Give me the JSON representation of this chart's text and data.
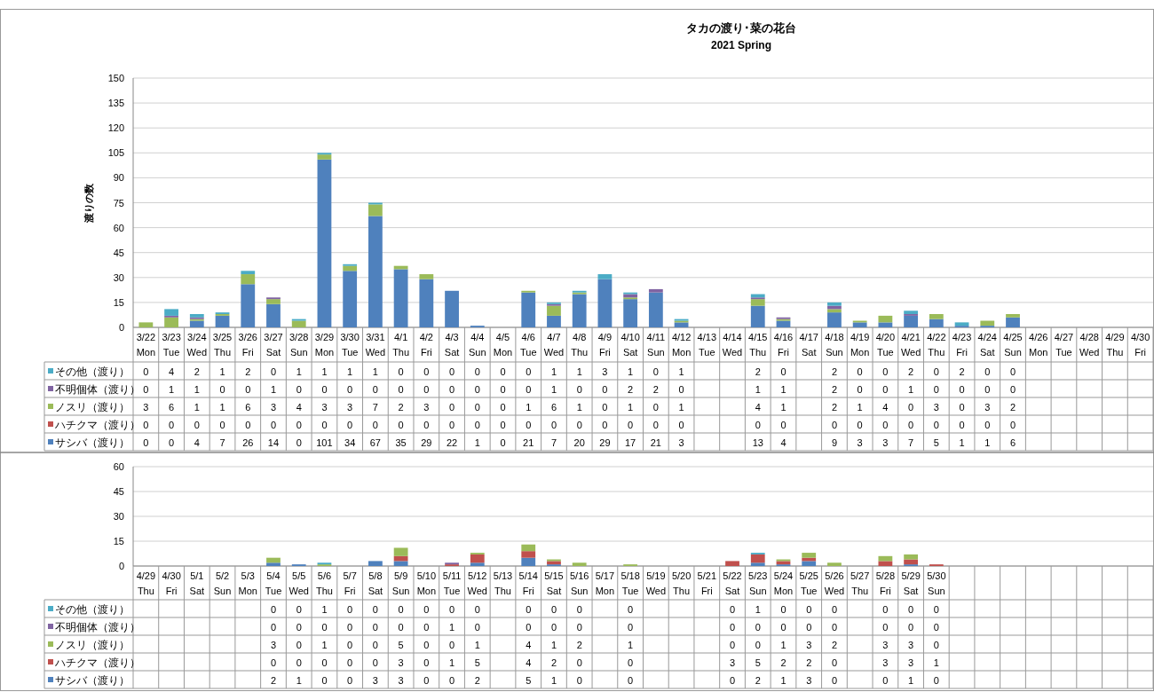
{
  "chart_data": [
    {
      "type": "bar",
      "title": "タカの渡り･菜の花台",
      "subtitle": "2021 Spring",
      "ylabel": "渡りの数",
      "stacked": true,
      "grid": "y",
      "legend": "bottom",
      "data_labels": true,
      "ylim": [
        0,
        150
      ],
      "yticks": [
        0,
        15,
        30,
        45,
        60,
        75,
        90,
        105,
        120,
        135,
        150
      ],
      "categories": [
        "3/22\nMon",
        "3/23\nTue",
        "3/24\nWed",
        "3/25\nThu",
        "3/26\nFri",
        "3/27\nSat",
        "3/28\nSun",
        "3/29\nMon",
        "3/30\nTue",
        "3/31\nWed",
        "4/1\nThu",
        "4/2\nFri",
        "4/3\nSat",
        "4/4\nSun",
        "4/5\nMon",
        "4/6\nTue",
        "4/7\nWed",
        "4/8\nThu",
        "4/9\nFri",
        "4/10\nSat",
        "4/11\nSun",
        "4/12\nMon",
        "4/13\nTue",
        "4/14\nWed",
        "4/15\nThu",
        "4/16\nFri",
        "4/17\nSat",
        "4/18\nSun",
        "4/19\nMon",
        "4/20\nTue",
        "4/21\nWed",
        "4/22\nThu",
        "4/23\nFri",
        "4/24\nSat",
        "4/25\nSun",
        "4/26\nMon",
        "4/27\nTue",
        "4/28\nWed",
        "4/29\nThu",
        "4/30\nFri"
      ],
      "series": [
        {
          "name": "サシバ（渡り）",
          "color": "#4f81bd",
          "values": [
            0,
            0,
            4,
            7,
            26,
            14,
            0,
            101,
            34,
            67,
            35,
            29,
            22,
            1,
            0,
            21,
            7,
            20,
            29,
            17,
            21,
            3,
            null,
            null,
            13,
            4,
            null,
            9,
            3,
            3,
            7,
            5,
            1,
            1,
            6,
            null,
            null,
            null,
            null,
            null
          ]
        },
        {
          "name": "ハチクマ（渡り）",
          "color": "#c0504d",
          "values": [
            0,
            0,
            0,
            0,
            0,
            0,
            0,
            0,
            0,
            0,
            0,
            0,
            0,
            0,
            0,
            0,
            0,
            0,
            0,
            0,
            0,
            0,
            null,
            null,
            0,
            0,
            null,
            0,
            0,
            0,
            0,
            0,
            0,
            0,
            0,
            null,
            null,
            null,
            null,
            null
          ]
        },
        {
          "name": "ノスリ（渡り）",
          "color": "#9bbb59",
          "values": [
            3,
            6,
            1,
            1,
            6,
            3,
            4,
            3,
            3,
            7,
            2,
            3,
            0,
            0,
            0,
            1,
            6,
            1,
            0,
            1,
            0,
            1,
            null,
            null,
            4,
            1,
            null,
            2,
            1,
            4,
            0,
            3,
            0,
            3,
            2,
            null,
            null,
            null,
            null,
            null
          ]
        },
        {
          "name": "不明個体（渡り）",
          "color": "#8064a2",
          "values": [
            0,
            1,
            1,
            0,
            0,
            1,
            0,
            0,
            0,
            0,
            0,
            0,
            0,
            0,
            0,
            0,
            1,
            0,
            0,
            2,
            2,
            0,
            null,
            null,
            1,
            1,
            null,
            2,
            0,
            0,
            1,
            0,
            0,
            0,
            0,
            null,
            null,
            null,
            null,
            null
          ]
        },
        {
          "name": "その他（渡り）",
          "color": "#4bacc6",
          "values": [
            0,
            4,
            2,
            1,
            2,
            0,
            1,
            1,
            1,
            1,
            0,
            0,
            0,
            0,
            0,
            0,
            1,
            1,
            3,
            1,
            0,
            1,
            null,
            null,
            2,
            0,
            null,
            2,
            0,
            0,
            2,
            0,
            2,
            0,
            0,
            null,
            null,
            null,
            null,
            null
          ]
        }
      ]
    },
    {
      "type": "bar",
      "stacked": true,
      "grid": "y",
      "legend": "bottom",
      "data_labels": true,
      "ylim": [
        0,
        60
      ],
      "yticks": [
        0,
        15,
        30,
        45,
        60
      ],
      "categories": [
        "4/29\nThu",
        "4/30\nFri",
        "5/1\nSat",
        "5/2\nSun",
        "5/3\nMon",
        "5/4\nTue",
        "5/5\nWed",
        "5/6\nThu",
        "5/7\nFri",
        "5/8\nSat",
        "5/9\nSun",
        "5/10\nMon",
        "5/11\nTue",
        "5/12\nWed",
        "5/13\nThu",
        "5/14\nFri",
        "5/15\nSat",
        "5/16\nSun",
        "5/17\nMon",
        "5/18\nTue",
        "5/19\nWed",
        "5/20\nThu",
        "5/21\nFri",
        "5/22\nSat",
        "5/23\nSun",
        "5/24\nMon",
        "5/25\nTue",
        "5/26\nWed",
        "5/27\nThu",
        "5/28\nFri",
        "5/29\nSat",
        "5/30\nSun",
        null,
        null,
        null,
        null,
        null,
        null,
        null,
        null
      ],
      "series": [
        {
          "name": "サシバ（渡り）",
          "color": "#4f81bd",
          "values": [
            null,
            null,
            null,
            null,
            null,
            2,
            1,
            0,
            0,
            3,
            3,
            0,
            0,
            2,
            null,
            5,
            1,
            0,
            null,
            0,
            null,
            null,
            null,
            0,
            2,
            1,
            3,
            0,
            null,
            0,
            1,
            0,
            null,
            null,
            null,
            null,
            null,
            null,
            null,
            null
          ]
        },
        {
          "name": "ハチクマ（渡り）",
          "color": "#c0504d",
          "values": [
            null,
            null,
            null,
            null,
            null,
            0,
            0,
            0,
            0,
            0,
            3,
            0,
            1,
            5,
            null,
            4,
            2,
            0,
            null,
            0,
            null,
            null,
            null,
            3,
            5,
            2,
            2,
            0,
            null,
            3,
            3,
            1,
            null,
            null,
            null,
            null,
            null,
            null,
            null,
            null
          ]
        },
        {
          "name": "ノスリ（渡り）",
          "color": "#9bbb59",
          "values": [
            null,
            null,
            null,
            null,
            null,
            3,
            0,
            1,
            0,
            0,
            5,
            0,
            0,
            1,
            null,
            4,
            1,
            2,
            null,
            1,
            null,
            null,
            null,
            0,
            0,
            1,
            3,
            2,
            null,
            3,
            3,
            0,
            null,
            null,
            null,
            null,
            null,
            null,
            null,
            null
          ]
        },
        {
          "name": "不明個体（渡り）",
          "color": "#8064a2",
          "values": [
            null,
            null,
            null,
            null,
            null,
            0,
            0,
            0,
            0,
            0,
            0,
            0,
            1,
            0,
            null,
            0,
            0,
            0,
            null,
            0,
            null,
            null,
            null,
            0,
            0,
            0,
            0,
            0,
            null,
            0,
            0,
            0,
            null,
            null,
            null,
            null,
            null,
            null,
            null,
            null
          ]
        },
        {
          "name": "その他（渡り）",
          "color": "#4bacc6",
          "values": [
            null,
            null,
            null,
            null,
            null,
            0,
            0,
            1,
            0,
            0,
            0,
            0,
            0,
            0,
            null,
            0,
            0,
            0,
            null,
            0,
            null,
            null,
            null,
            0,
            1,
            0,
            0,
            0,
            null,
            0,
            0,
            0,
            null,
            null,
            null,
            null,
            null,
            null,
            null,
            null
          ]
        }
      ]
    }
  ]
}
